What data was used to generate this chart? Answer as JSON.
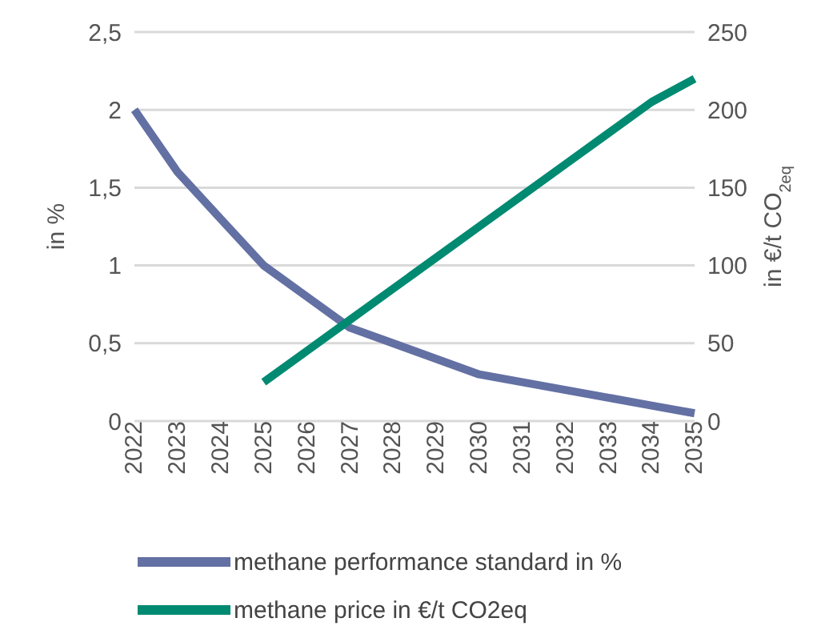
{
  "chart_data": {
    "type": "line",
    "ylabel": "in %",
    "y2label": "in €/t CO$_{2eq}$",
    "categories": [
      "2022",
      "2023",
      "2024",
      "2025",
      "2026",
      "2027",
      "2028",
      "2029",
      "2030",
      "2031",
      "2032",
      "2033",
      "2034",
      "2035"
    ],
    "series": [
      {
        "name": "methane performance standard in %",
        "color": "#6370a3",
        "values": [
          2,
          1.6,
          1.3,
          1.0,
          0.8,
          0.6,
          0.5,
          0.4,
          0.3,
          0.25,
          0.2,
          0.15,
          0.1,
          0.05
        ]
      },
      {
        "name": "methane price in €/t CO2eq",
        "color": "#008a72",
        "axis": "y2",
        "values": [
          null,
          null,
          null,
          25,
          45,
          65,
          85,
          105,
          125,
          145,
          165,
          185,
          205,
          220
        ]
      }
    ],
    "ylim": [
      0,
      2.5
    ],
    "yticks": [
      0,
      {
        "value": 0.5,
        "label": "0,5"
      },
      1,
      {
        "value": 1.5,
        "label": "1,5"
      },
      2,
      {
        "value": 2.5,
        "label": "2,5"
      }
    ],
    "y2lim": [
      0,
      250
    ],
    "y2ticks": [
      0,
      50,
      100,
      150,
      200,
      250
    ],
    "grid": "y",
    "legend": "bottom",
    "marker": "none",
    "line_style": "solid"
  }
}
